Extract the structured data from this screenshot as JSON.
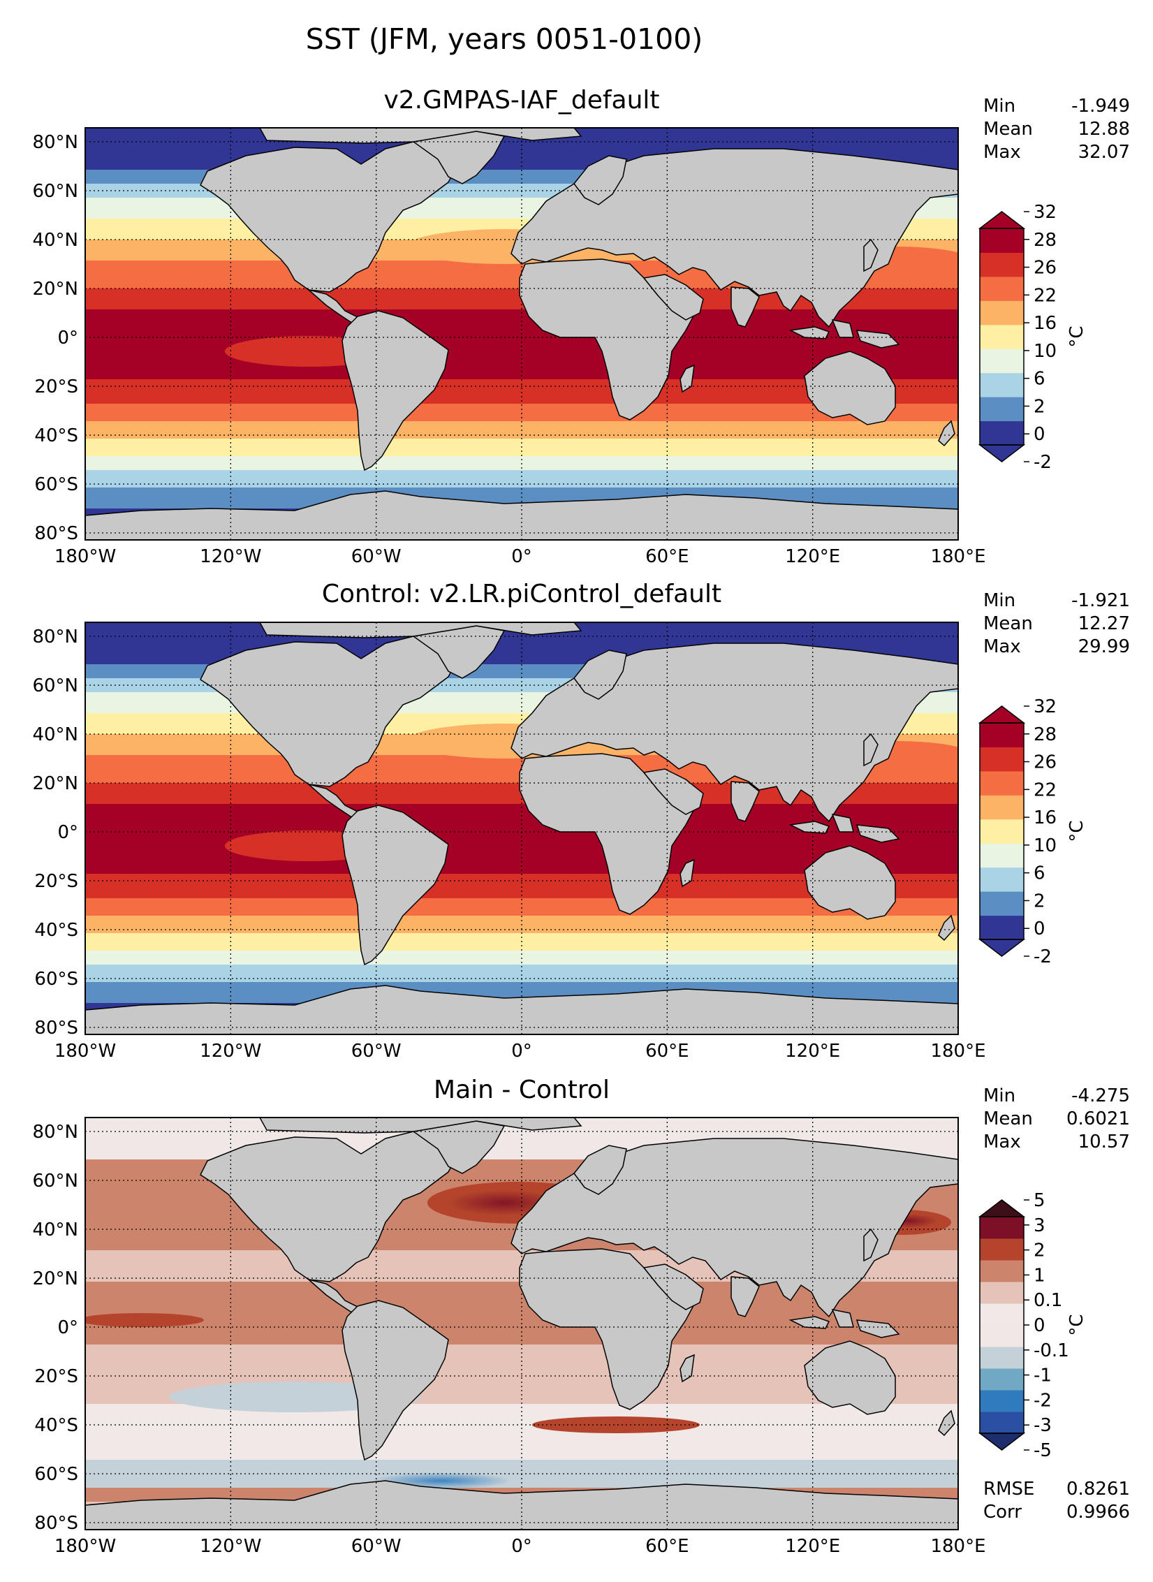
{
  "figure": {
    "title": "SST (JFM, years 0051-0100)"
  },
  "axes": {
    "lon_ticks": [
      "180°W",
      "120°W",
      "60°W",
      "0°",
      "60°E",
      "120°E",
      "180°E"
    ],
    "lat_ticks": [
      "80°N",
      "60°N",
      "40°N",
      "20°N",
      "0°",
      "20°S",
      "40°S",
      "60°S",
      "80°S"
    ]
  },
  "panels": [
    {
      "title": "v2.GMPAS-IAF_default",
      "stats": [
        {
          "label": "Min",
          "value": "-1.949"
        },
        {
          "label": "Mean",
          "value": "12.88"
        },
        {
          "label": "Max",
          "value": "32.07"
        }
      ],
      "colorbar": {
        "unit": "°C",
        "ticks": [
          "-2",
          "0",
          "2",
          "6",
          "10",
          "16",
          "22",
          "26",
          "28",
          "32"
        ],
        "colors": [
          "#313695",
          "#5b8fc4",
          "#aad4e6",
          "#e9f5e2",
          "#fdf0a3",
          "#fdb366",
          "#f46d43",
          "#d73027",
          "#a50026"
        ],
        "under": "#313695",
        "over": "#a50026"
      }
    },
    {
      "title": "Control: v2.LR.piControl_default",
      "stats": [
        {
          "label": "Min",
          "value": "-1.921"
        },
        {
          "label": "Mean",
          "value": "12.27"
        },
        {
          "label": "Max",
          "value": "29.99"
        }
      ],
      "colorbar": {
        "unit": "°C",
        "ticks": [
          "-2",
          "0",
          "2",
          "6",
          "10",
          "16",
          "22",
          "26",
          "28",
          "32"
        ],
        "colors": [
          "#313695",
          "#5b8fc4",
          "#aad4e6",
          "#e9f5e2",
          "#fdf0a3",
          "#fdb366",
          "#f46d43",
          "#d73027",
          "#a50026"
        ],
        "under": "#313695",
        "over": "#a50026"
      }
    },
    {
      "title": "Main - Control",
      "stats": [
        {
          "label": "Min",
          "value": "-4.275"
        },
        {
          "label": "Mean",
          "value": "0.6021"
        },
        {
          "label": "Max",
          "value": "10.57"
        }
      ],
      "extra_stats": [
        {
          "label": "RMSE",
          "value": "0.8261"
        },
        {
          "label": "Corr",
          "value": "0.9966"
        }
      ],
      "colorbar": {
        "unit": "°C",
        "ticks": [
          "-5",
          "-3",
          "-2",
          "-1",
          "-0.1",
          "0",
          "0.1",
          "1",
          "2",
          "3",
          "5"
        ],
        "colors": [
          "#2b4fa3",
          "#2f7bbd",
          "#71a9c4",
          "#c4d1d9",
          "#f0e7e7",
          "#f1e8e8",
          "#e6c3b8",
          "#cc856c",
          "#b4442b",
          "#7d1026"
        ],
        "under": "#1c2e6e",
        "over": "#3d0f18"
      }
    }
  ],
  "colors": {
    "land": "#c8c8c8",
    "coast": "#000000"
  }
}
